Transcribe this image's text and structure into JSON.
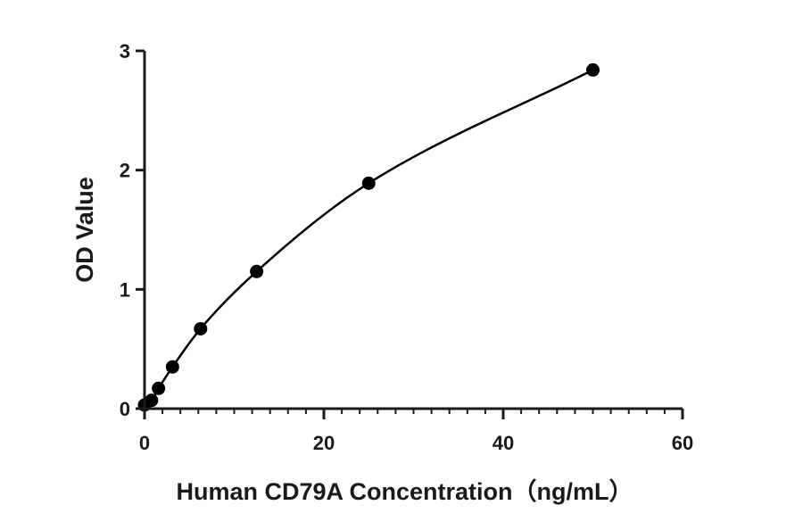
{
  "chart_data": {
    "type": "scatter",
    "xlabel": "Human CD79A Concentration（ng/mL）",
    "ylabel": "OD Value",
    "xlim": [
      0,
      60
    ],
    "ylim": [
      0,
      3
    ],
    "x_ticks": [
      "0",
      "20",
      "40",
      "60"
    ],
    "y_ticks": [
      "0",
      "1",
      "2",
      "3"
    ],
    "x_minor_step": 2,
    "grid": false,
    "legend": "none",
    "fit_curve": true,
    "series": [
      {
        "x": [
          0,
          0.78,
          1.56,
          3.12,
          6.25,
          12.5,
          25,
          50
        ],
        "y": [
          0.03,
          0.07,
          0.17,
          0.35,
          0.67,
          1.15,
          1.89,
          2.84
        ]
      }
    ],
    "colors": {
      "marker": "#000000",
      "line": "#000000"
    }
  }
}
